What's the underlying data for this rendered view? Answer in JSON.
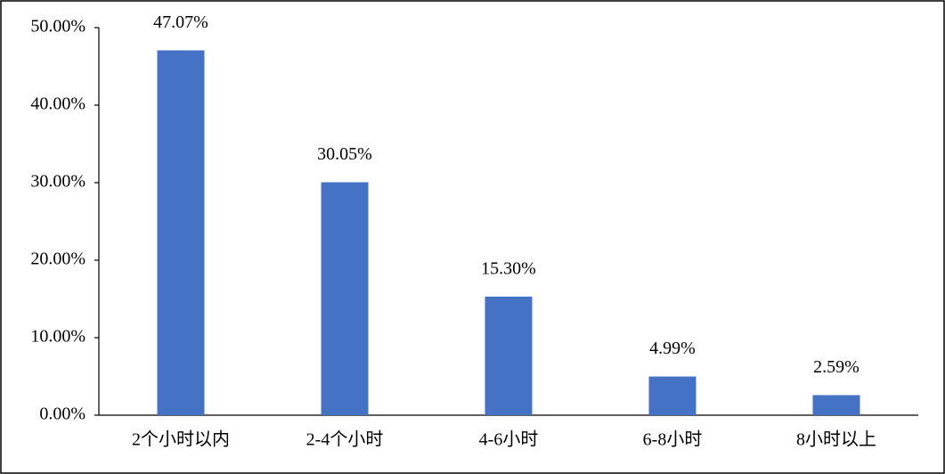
{
  "chart_data": {
    "type": "bar",
    "categories": [
      "2个小时以内",
      "2-4个小时",
      "4-6小时",
      "6-8小时",
      "8小时以上"
    ],
    "values": [
      47.07,
      30.05,
      15.3,
      4.99,
      2.59
    ],
    "value_labels": [
      "47.07%",
      "30.05%",
      "15.30%",
      "4.99%",
      "2.59%"
    ],
    "color": "#4472c4",
    "ylim": [
      0,
      50
    ],
    "yticks": [
      {
        "value": 0,
        "label": "0.00%"
      },
      {
        "value": 10,
        "label": "10.00%"
      },
      {
        "value": 20,
        "label": "20.00%"
      },
      {
        "value": 30,
        "label": "30.00%"
      },
      {
        "value": 40,
        "label": "40.00%"
      },
      {
        "value": 50,
        "label": "50.00%"
      }
    ],
    "grid": false
  }
}
